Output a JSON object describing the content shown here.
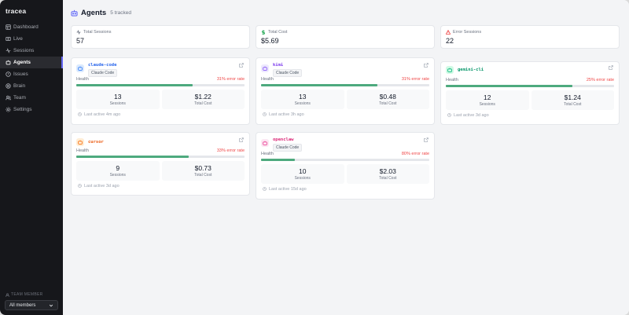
{
  "brand": "tracea",
  "sidebar": {
    "items": [
      {
        "label": "Dashboard",
        "icon": "dashboard-icon"
      },
      {
        "label": "Live",
        "icon": "broadcast-icon"
      },
      {
        "label": "Sessions",
        "icon": "activity-icon"
      },
      {
        "label": "Agents",
        "icon": "bot-icon",
        "active": true
      },
      {
        "label": "Issues",
        "icon": "alert-circle-icon"
      },
      {
        "label": "Brain",
        "icon": "brain-icon"
      },
      {
        "label": "Team",
        "icon": "users-icon"
      },
      {
        "label": "Settings",
        "icon": "gear-icon"
      }
    ],
    "team_label": "TEAM MEMBER",
    "team_select": "All members"
  },
  "header": {
    "title": "Agents",
    "subtitle": "5 tracked"
  },
  "stats": [
    {
      "label": "Total Sessions",
      "value": "57",
      "icon": "activity-icon",
      "color": "#6b7280"
    },
    {
      "label": "Total Cost",
      "value": "$5.69",
      "icon": "dollar-icon",
      "color": "#16a34a"
    },
    {
      "label": "Error Sessions",
      "value": "22",
      "icon": "warning-icon",
      "color": "#ef4444"
    }
  ],
  "labels": {
    "health": "Health",
    "sessions": "Sessions",
    "cost": "Total Cost"
  },
  "agents": [
    {
      "name": "claude-code",
      "badge": "Claude Code",
      "error_rate": "31% error rate",
      "health": 0.69,
      "sessions": "13",
      "cost": "$1.22",
      "last_active": "Last active 4m ago",
      "name_color": "#2563eb",
      "avatar_bg": "#dbeafe",
      "avatar_fg": "#3b82f6"
    },
    {
      "name": "kimi",
      "badge": "Claude Code",
      "error_rate": "31% error rate",
      "health": 0.69,
      "sessions": "13",
      "cost": "$0.48",
      "last_active": "Last active 3h ago",
      "name_color": "#7c3aed",
      "avatar_bg": "#ede9fe",
      "avatar_fg": "#8b5cf6"
    },
    {
      "name": "gemini-cli",
      "badge": "",
      "error_rate": "25% error rate",
      "health": 0.75,
      "sessions": "12",
      "cost": "$1.24",
      "last_active": "Last active 3d ago",
      "name_color": "#059669",
      "avatar_bg": "#d1fae5",
      "avatar_fg": "#10b981"
    },
    {
      "name": "cursor",
      "badge": "",
      "error_rate": "33% error rate",
      "health": 0.67,
      "sessions": "9",
      "cost": "$0.73",
      "last_active": "Last active 3d ago",
      "name_color": "#ea580c",
      "avatar_bg": "#ffedd5",
      "avatar_fg": "#f97316"
    },
    {
      "name": "openclaw",
      "badge": "Claude Code",
      "error_rate": "80% error rate",
      "health": 0.2,
      "sessions": "10",
      "cost": "$2.03",
      "last_active": "Last active 15d ago",
      "name_color": "#db2777",
      "avatar_bg": "#fce7f3",
      "avatar_fg": "#ec4899"
    }
  ]
}
